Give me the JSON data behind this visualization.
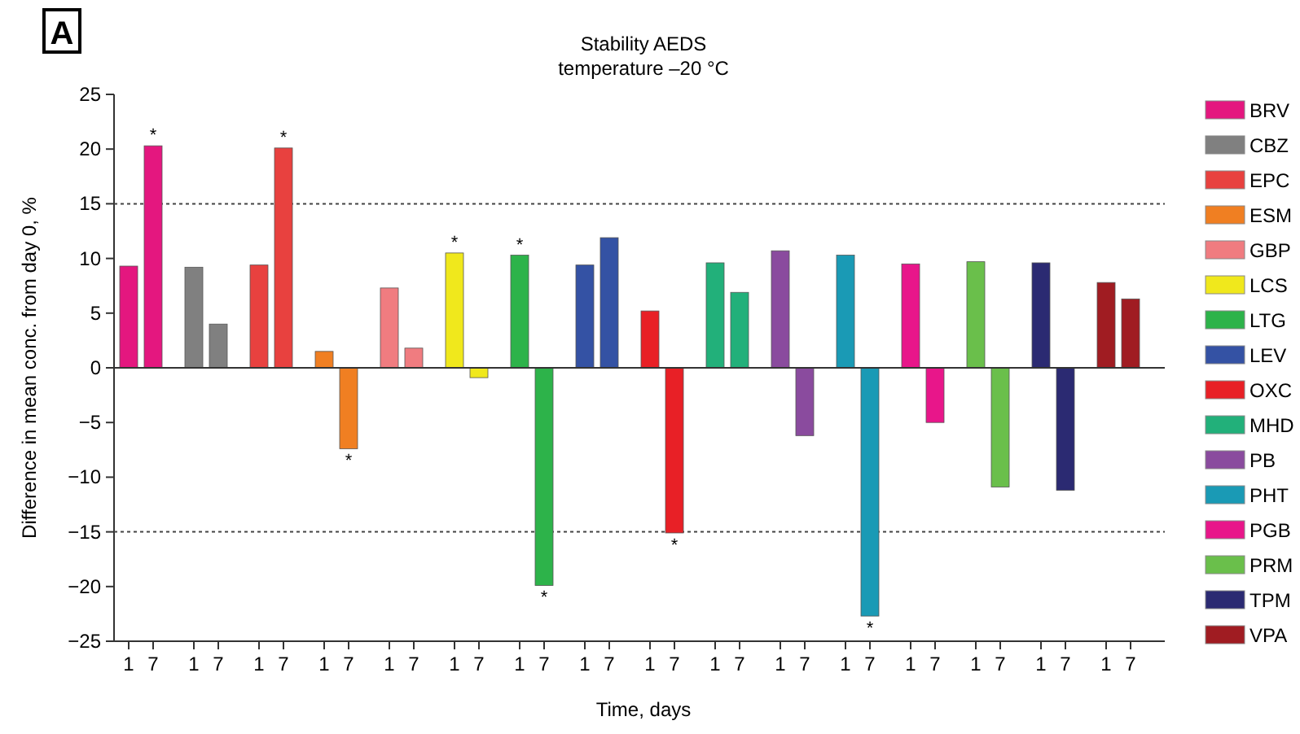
{
  "chart_data": {
    "type": "bar",
    "title": "Stability AEDS",
    "subtitle": "temperature –20 °C",
    "xlabel": "Time, days",
    "ylabel": "Difference in mean conc. from day 0, %",
    "annotations": [
      "A"
    ],
    "categories": [
      "1",
      "7",
      "1",
      "7",
      "1",
      "7",
      "1",
      "7",
      "1",
      "7",
      "1",
      "7",
      "1",
      "7",
      "1",
      "7",
      "1",
      "7",
      "1",
      "7",
      "1",
      "7",
      "1",
      "7",
      "1",
      "7",
      "1",
      "7",
      "1",
      "7",
      "1",
      "7"
    ],
    "ylim": [
      -25,
      25
    ],
    "yticks": [
      {
        "value": -25,
        "label": "−25"
      },
      {
        "value": -20,
        "label": "−20"
      },
      {
        "value": -15,
        "label": "−15"
      },
      {
        "value": -10,
        "label": "−10"
      },
      {
        "value": -5,
        "label": "−5"
      },
      0,
      5,
      10,
      15,
      20,
      25
    ],
    "ref_lines": [
      {
        "axis": "y",
        "value": 15,
        "label": null,
        "line_style": "dotted"
      },
      {
        "axis": "y",
        "value": -15,
        "label": null,
        "line_style": "dotted"
      }
    ],
    "legend": "right",
    "series": [
      {
        "name": "BRV",
        "color": "#e4177f",
        "values": [
          9.3,
          20.3,
          null,
          null,
          null,
          null,
          null,
          null,
          null,
          null,
          null,
          null,
          null,
          null,
          null,
          null,
          null,
          null,
          null,
          null,
          null,
          null,
          null,
          null,
          null,
          null,
          null,
          null,
          null,
          null,
          null,
          null
        ],
        "value_labels": [
          null,
          "*",
          null,
          null,
          null,
          null,
          null,
          null,
          null,
          null,
          null,
          null,
          null,
          null,
          null,
          null,
          null,
          null,
          null,
          null,
          null,
          null,
          null,
          null,
          null,
          null,
          null,
          null,
          null,
          null,
          null,
          null
        ]
      },
      {
        "name": "CBZ",
        "color": "#808080",
        "values": [
          null,
          null,
          9.2,
          4.0,
          null,
          null,
          null,
          null,
          null,
          null,
          null,
          null,
          null,
          null,
          null,
          null,
          null,
          null,
          null,
          null,
          null,
          null,
          null,
          null,
          null,
          null,
          null,
          null,
          null,
          null,
          null,
          null
        ]
      },
      {
        "name": "EPC",
        "color": "#e8413f",
        "values": [
          null,
          null,
          null,
          null,
          9.4,
          20.1,
          null,
          null,
          null,
          null,
          null,
          null,
          null,
          null,
          null,
          null,
          null,
          null,
          null,
          null,
          null,
          null,
          null,
          null,
          null,
          null,
          null,
          null,
          null,
          null,
          null,
          null
        ],
        "value_labels": [
          null,
          null,
          null,
          null,
          null,
          "*",
          null,
          null,
          null,
          null,
          null,
          null,
          null,
          null,
          null,
          null,
          null,
          null,
          null,
          null,
          null,
          null,
          null,
          null,
          null,
          null,
          null,
          null,
          null,
          null,
          null,
          null
        ]
      },
      {
        "name": "ESM",
        "color": "#f07f22",
        "values": [
          null,
          null,
          null,
          null,
          null,
          null,
          1.5,
          -7.4,
          null,
          null,
          null,
          null,
          null,
          null,
          null,
          null,
          null,
          null,
          null,
          null,
          null,
          null,
          null,
          null,
          null,
          null,
          null,
          null,
          null,
          null,
          null,
          null
        ],
        "value_labels": [
          null,
          null,
          null,
          null,
          null,
          null,
          null,
          "*",
          null,
          null,
          null,
          null,
          null,
          null,
          null,
          null,
          null,
          null,
          null,
          null,
          null,
          null,
          null,
          null,
          null,
          null,
          null,
          null,
          null,
          null,
          null,
          null
        ]
      },
      {
        "name": "GBP",
        "color": "#f07c80",
        "values": [
          null,
          null,
          null,
          null,
          null,
          null,
          null,
          null,
          7.3,
          1.8,
          null,
          null,
          null,
          null,
          null,
          null,
          null,
          null,
          null,
          null,
          null,
          null,
          null,
          null,
          null,
          null,
          null,
          null,
          null,
          null,
          null,
          null
        ]
      },
      {
        "name": "LCS",
        "color": "#f0e81c",
        "values": [
          null,
          null,
          null,
          null,
          null,
          null,
          null,
          null,
          null,
          null,
          10.5,
          -0.9,
          null,
          null,
          null,
          null,
          null,
          null,
          null,
          null,
          null,
          null,
          null,
          null,
          null,
          null,
          null,
          null,
          null,
          null,
          null,
          null
        ],
        "value_labels": [
          null,
          null,
          null,
          null,
          null,
          null,
          null,
          null,
          null,
          null,
          "*",
          null,
          null,
          null,
          null,
          null,
          null,
          null,
          null,
          null,
          null,
          null,
          null,
          null,
          null,
          null,
          null,
          null,
          null,
          null,
          null,
          null
        ]
      },
      {
        "name": "LTG",
        "color": "#2db34a",
        "values": [
          null,
          null,
          null,
          null,
          null,
          null,
          null,
          null,
          null,
          null,
          null,
          null,
          10.3,
          -19.9,
          null,
          null,
          null,
          null,
          null,
          null,
          null,
          null,
          null,
          null,
          null,
          null,
          null,
          null,
          null,
          null,
          null,
          null
        ],
        "value_labels": [
          null,
          null,
          null,
          null,
          null,
          null,
          null,
          null,
          null,
          null,
          null,
          null,
          "*",
          "*",
          null,
          null,
          null,
          null,
          null,
          null,
          null,
          null,
          null,
          null,
          null,
          null,
          null,
          null,
          null,
          null,
          null,
          null
        ]
      },
      {
        "name": "LEV",
        "color": "#3452a4",
        "values": [
          null,
          null,
          null,
          null,
          null,
          null,
          null,
          null,
          null,
          null,
          null,
          null,
          null,
          null,
          9.4,
          11.9,
          null,
          null,
          null,
          null,
          null,
          null,
          null,
          null,
          null,
          null,
          null,
          null,
          null,
          null,
          null,
          null
        ]
      },
      {
        "name": "OXC",
        "color": "#e82026",
        "values": [
          null,
          null,
          null,
          null,
          null,
          null,
          null,
          null,
          null,
          null,
          null,
          null,
          null,
          null,
          null,
          null,
          5.2,
          -15.1,
          null,
          null,
          null,
          null,
          null,
          null,
          null,
          null,
          null,
          null,
          null,
          null,
          null,
          null
        ],
        "value_labels": [
          null,
          null,
          null,
          null,
          null,
          null,
          null,
          null,
          null,
          null,
          null,
          null,
          null,
          null,
          null,
          null,
          null,
          "*",
          null,
          null,
          null,
          null,
          null,
          null,
          null,
          null,
          null,
          null,
          null,
          null,
          null,
          null
        ]
      },
      {
        "name": "MHD",
        "color": "#22b07a",
        "values": [
          null,
          null,
          null,
          null,
          null,
          null,
          null,
          null,
          null,
          null,
          null,
          null,
          null,
          null,
          null,
          null,
          null,
          null,
          9.6,
          6.9,
          null,
          null,
          null,
          null,
          null,
          null,
          null,
          null,
          null,
          null,
          null,
          null
        ]
      },
      {
        "name": "PB",
        "color": "#8a4b9e",
        "values": [
          null,
          null,
          null,
          null,
          null,
          null,
          null,
          null,
          null,
          null,
          null,
          null,
          null,
          null,
          null,
          null,
          null,
          null,
          null,
          null,
          10.7,
          -6.2,
          null,
          null,
          null,
          null,
          null,
          null,
          null,
          null,
          null,
          null
        ]
      },
      {
        "name": "PHT",
        "color": "#1a9ab5",
        "values": [
          null,
          null,
          null,
          null,
          null,
          null,
          null,
          null,
          null,
          null,
          null,
          null,
          null,
          null,
          null,
          null,
          null,
          null,
          null,
          null,
          null,
          null,
          10.3,
          -22.7,
          null,
          null,
          null,
          null,
          null,
          null,
          null,
          null
        ],
        "value_labels": [
          null,
          null,
          null,
          null,
          null,
          null,
          null,
          null,
          null,
          null,
          null,
          null,
          null,
          null,
          null,
          null,
          null,
          null,
          null,
          null,
          null,
          null,
          null,
          "*",
          null,
          null,
          null,
          null,
          null,
          null,
          null,
          null
        ]
      },
      {
        "name": "PGB",
        "color": "#e8168a",
        "values": [
          null,
          null,
          null,
          null,
          null,
          null,
          null,
          null,
          null,
          null,
          null,
          null,
          null,
          null,
          null,
          null,
          null,
          null,
          null,
          null,
          null,
          null,
          null,
          null,
          9.5,
          -5.0,
          null,
          null,
          null,
          null,
          null,
          null
        ]
      },
      {
        "name": "PRM",
        "color": "#6abf4b",
        "values": [
          null,
          null,
          null,
          null,
          null,
          null,
          null,
          null,
          null,
          null,
          null,
          null,
          null,
          null,
          null,
          null,
          null,
          null,
          null,
          null,
          null,
          null,
          null,
          null,
          null,
          null,
          9.7,
          -10.9,
          null,
          null,
          null,
          null
        ]
      },
      {
        "name": "TPM",
        "color": "#2b2a72",
        "values": [
          null,
          null,
          null,
          null,
          null,
          null,
          null,
          null,
          null,
          null,
          null,
          null,
          null,
          null,
          null,
          null,
          null,
          null,
          null,
          null,
          null,
          null,
          null,
          null,
          null,
          null,
          null,
          null,
          9.6,
          -11.2,
          null,
          null
        ]
      },
      {
        "name": "VPA",
        "color": "#a01c22",
        "values": [
          null,
          null,
          null,
          null,
          null,
          null,
          null,
          null,
          null,
          null,
          null,
          null,
          null,
          null,
          null,
          null,
          null,
          null,
          null,
          null,
          null,
          null,
          null,
          null,
          null,
          null,
          null,
          null,
          null,
          null,
          7.8,
          6.3
        ]
      }
    ]
  }
}
